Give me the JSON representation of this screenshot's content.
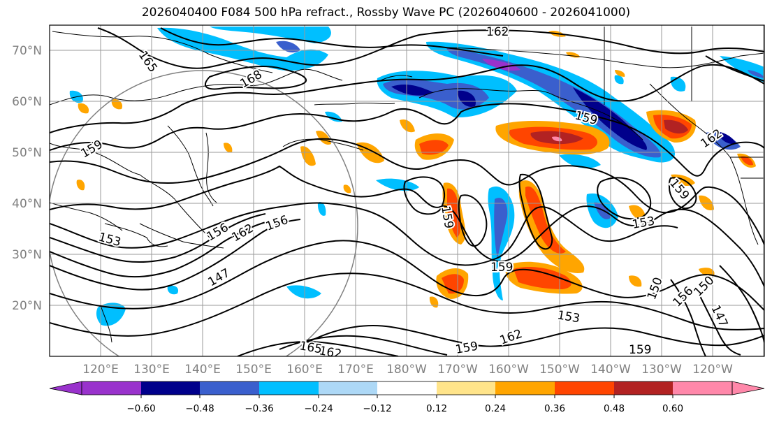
{
  "title": "2026040400 F084 500 hPa refract., Rossby Wave PC (2026040600 - 2026041000)",
  "lat_labels": [
    "70°N",
    "60°N",
    "50°N",
    "40°N",
    "30°N",
    "20°N"
  ],
  "lon_labels": [
    "120°E",
    "130°E",
    "140°E",
    "150°E",
    "160°E",
    "170°E",
    "180°W",
    "170°W",
    "160°W",
    "150°W",
    "140°W",
    "130°W",
    "120°W"
  ],
  "colorbar": {
    "ticks": [
      "−0.60",
      "−0.48",
      "−0.36",
      "−0.24",
      "−0.12",
      "0.12",
      "0.24",
      "0.36",
      "0.48",
      "0.60"
    ],
    "colors": [
      "#9932cc",
      "#00008b",
      "#3a5fcd",
      "#00bfff",
      "#add8f6",
      "#ffffff",
      "#ffe48a",
      "#ffa500",
      "#ff4500",
      "#b22222",
      "#ff88aa"
    ]
  },
  "contour_labels": [
    "162",
    "165",
    "168",
    "159",
    "159",
    "156",
    "162",
    "156",
    "153",
    "147",
    "159",
    "159",
    "153",
    "162",
    "159",
    "153",
    "150",
    "150",
    "156",
    "147",
    "162",
    "165",
    "159",
    "162",
    "159"
  ],
  "icons": {
    "circle": "forecast-region-circle"
  }
}
